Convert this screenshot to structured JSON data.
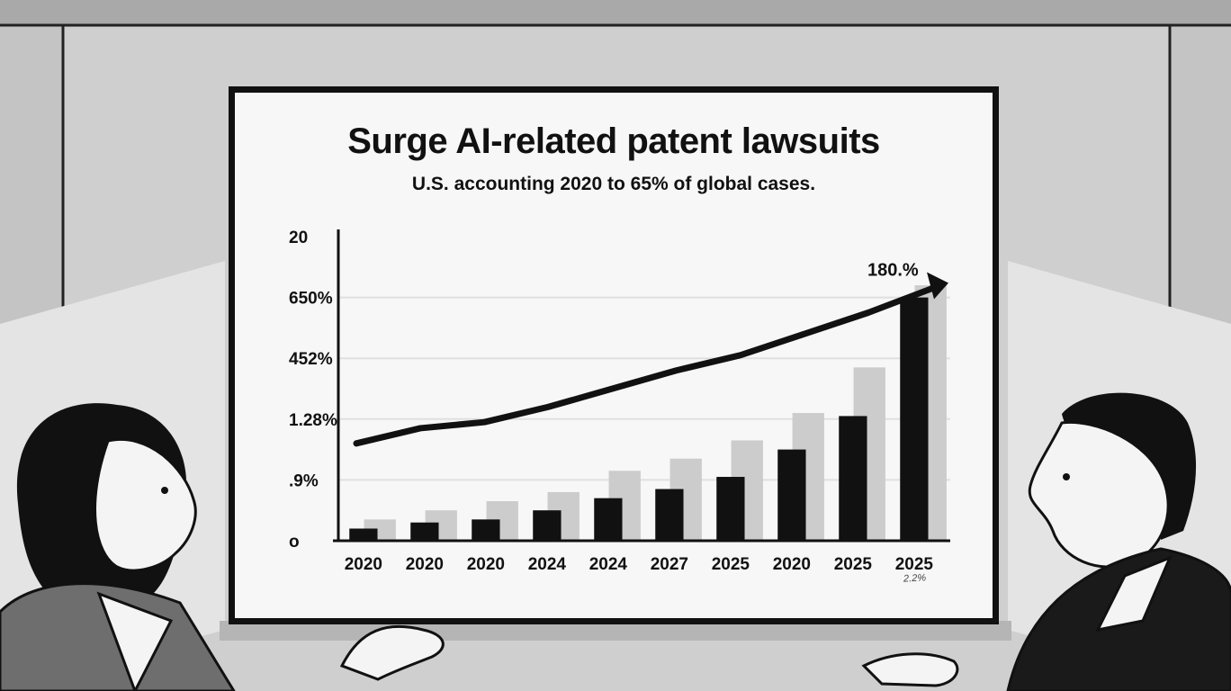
{
  "chart_data": {
    "type": "bar",
    "title": "Surge AI-related patent lawsuits",
    "subtitle": "U.S. accounting 2020 to 65% of global cases.",
    "categories": [
      "2020",
      "2020",
      "2020",
      "2024",
      "2024",
      "2027",
      "2025",
      "2020",
      "2025",
      "2025"
    ],
    "values": [
      4,
      6,
      7,
      10,
      14,
      17,
      21,
      30,
      41,
      80
    ],
    "background_series": [
      7,
      10,
      13,
      16,
      23,
      27,
      33,
      42,
      57,
      84
    ],
    "trend_line": [
      32,
      37,
      39,
      44,
      50,
      56,
      61,
      68,
      75,
      83
    ],
    "trend_label": "180.%",
    "y_tick_labels": [
      "o",
      ".9%",
      "1.28%",
      "452%",
      "650%",
      "20"
    ],
    "ylim": [
      0,
      100
    ],
    "xlabel": "",
    "ylabel": "",
    "grid": true,
    "footnote": "2.2%",
    "colors": {
      "bars": "#111111",
      "background_bars": "#cccccc",
      "trend": "#111111",
      "grid": "#e0e0e0",
      "frame": "#111111"
    }
  }
}
